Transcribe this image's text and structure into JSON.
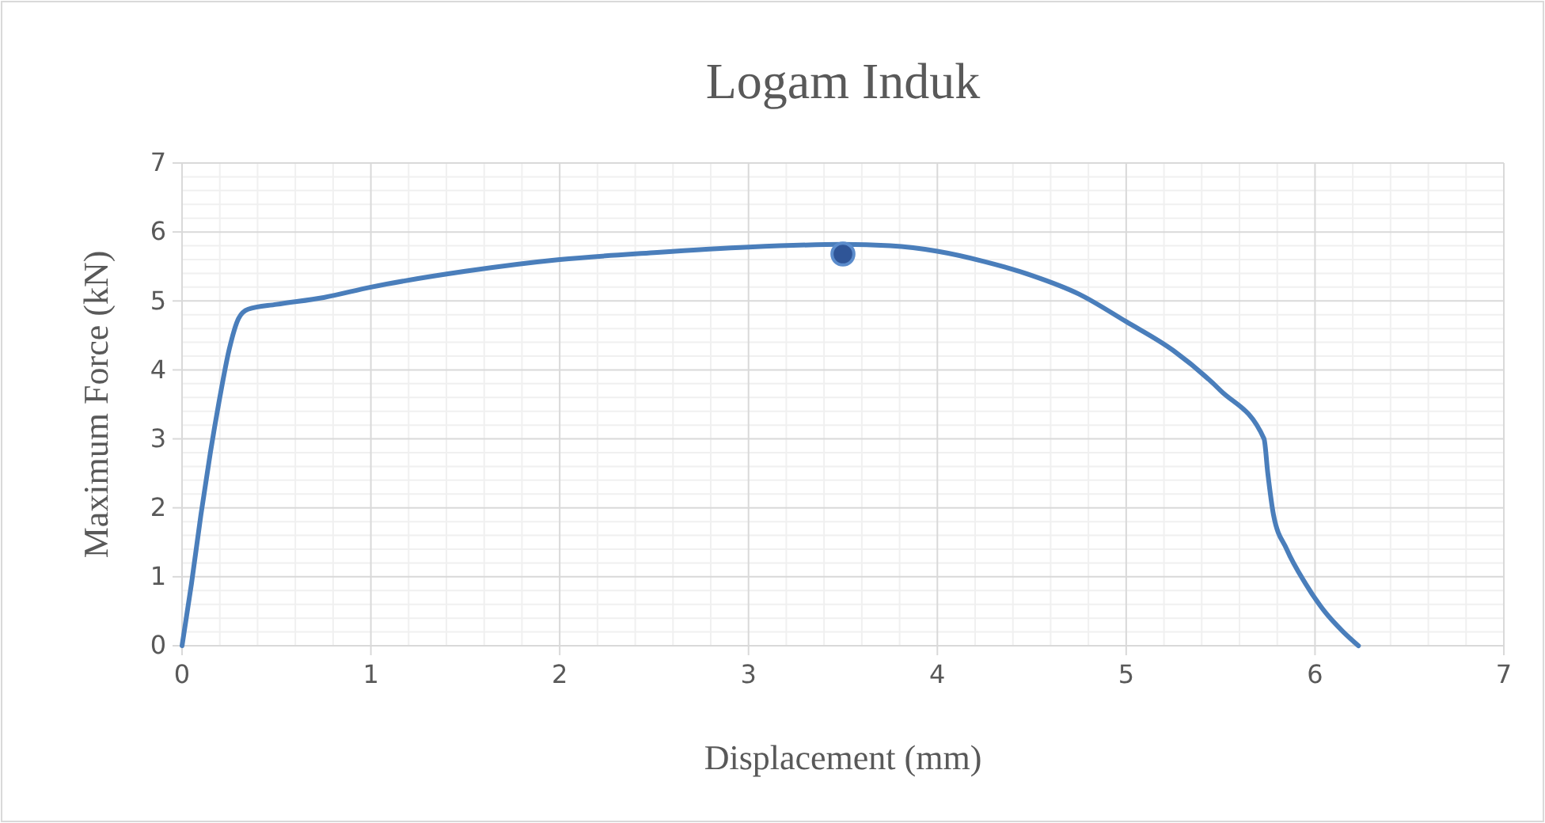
{
  "chart_data": {
    "type": "line",
    "title": "Logam Induk",
    "xlabel": "Displacement (mm)",
    "ylabel": "Maximum Force (kN)",
    "xlim": [
      0,
      7
    ],
    "xticks": [
      0,
      1,
      2,
      3,
      4,
      5,
      6,
      7
    ],
    "ylim": [
      0,
      7
    ],
    "yticks": [
      0,
      1,
      2,
      3,
      4,
      5,
      6,
      7
    ],
    "grid": true,
    "series": [
      {
        "color": "#4a7ebb",
        "marker": "none",
        "line_style": "solid",
        "x": [
          0,
          0.05,
          0.1,
          0.15,
          0.2,
          0.25,
          0.3,
          0.35,
          0.5,
          0.75,
          1,
          1.5,
          2,
          2.5,
          3,
          3.5,
          3.75,
          4,
          4.25,
          4.5,
          4.75,
          5,
          5.25,
          5.5,
          5.73,
          5.75,
          5.78,
          5.85,
          5.95,
          6.05,
          6.15,
          6.23
        ],
        "values": [
          0,
          0.9,
          1.9,
          2.8,
          3.6,
          4.3,
          4.75,
          4.88,
          4.95,
          5.05,
          5.2,
          5.43,
          5.6,
          5.7,
          5.78,
          5.82,
          5.8,
          5.72,
          5.57,
          5.37,
          5.1,
          4.7,
          4.28,
          3.7,
          3.0,
          2.5,
          1.9,
          1.4,
          0.9,
          0.5,
          0.2,
          0
        ]
      },
      {
        "type": "scatter",
        "color": "#2f5597",
        "marker": "circle",
        "x": [
          3.5
        ],
        "values": [
          5.68
        ]
      }
    ]
  }
}
